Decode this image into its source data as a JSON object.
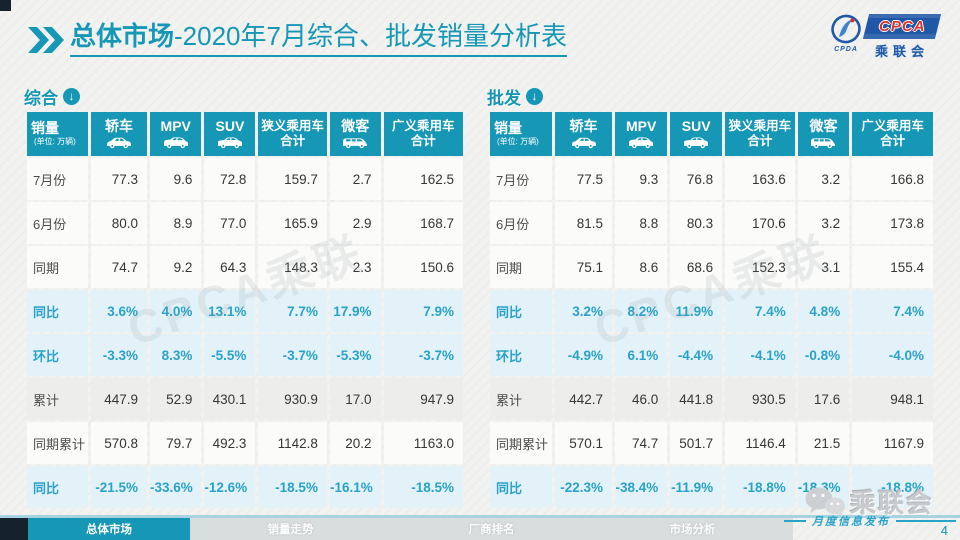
{
  "header": {
    "title_bold": "总体市场",
    "title_rest": "-2020年7月综合、批发销量分析表"
  },
  "logo": {
    "abbr": "CPCA",
    "cn": "乘联会",
    "sub": "CPDA"
  },
  "icons": {
    "down_arrow": "↓"
  },
  "watermark": {
    "text": "CPCA乘联"
  },
  "colors": {
    "accent_teal": "#1697b5",
    "value_teal": "#29a3c9",
    "logo_blue": "#2058a8",
    "logo_red": "#d9342b"
  },
  "tables": [
    {
      "section_label": "综合",
      "columns": [
        {
          "label": "销量",
          "sub": "(单位: 万辆)"
        },
        {
          "label": "轿车",
          "icon": "sedan-car-icon"
        },
        {
          "label": "MPV",
          "icon": "mpv-car-icon"
        },
        {
          "label": "SUV",
          "icon": "suv-car-icon"
        },
        {
          "label": "狭义乘用车",
          "label2": "合计"
        },
        {
          "label": "微客",
          "icon": "microvan-car-icon"
        },
        {
          "label": "广义乘用车",
          "label2": "合计"
        }
      ],
      "rows": [
        {
          "label": "7月份",
          "style": "plain",
          "values": [
            "77.3",
            "9.6",
            "72.8",
            "159.7",
            "2.7",
            "162.5"
          ]
        },
        {
          "label": "6月份",
          "style": "plain",
          "values": [
            "80.0",
            "8.9",
            "77.0",
            "165.9",
            "2.9",
            "168.7"
          ]
        },
        {
          "label": "同期",
          "style": "plain",
          "values": [
            "74.7",
            "9.2",
            "64.3",
            "148.3",
            "2.3",
            "150.6"
          ]
        },
        {
          "label": "同比",
          "style": "highlight",
          "values": [
            "3.6%",
            "4.0%",
            "13.1%",
            "7.7%",
            "17.9%",
            "7.9%"
          ]
        },
        {
          "label": "环比",
          "style": "highlight",
          "values": [
            "-3.3%",
            "8.3%",
            "-5.5%",
            "-3.7%",
            "-5.3%",
            "-3.7%"
          ]
        },
        {
          "label": "累计",
          "style": "gray",
          "values": [
            "447.9",
            "52.9",
            "430.1",
            "930.9",
            "17.0",
            "947.9"
          ]
        },
        {
          "label": "同期累计",
          "style": "plain",
          "values": [
            "570.8",
            "79.7",
            "492.3",
            "1142.8",
            "20.2",
            "1163.0"
          ]
        },
        {
          "label": "同比",
          "style": "highlight",
          "values": [
            "-21.5%",
            "-33.6%",
            "-12.6%",
            "-18.5%",
            "-16.1%",
            "-18.5%"
          ]
        }
      ]
    },
    {
      "section_label": "批发",
      "columns": [
        {
          "label": "销量",
          "sub": "(单位: 万辆)"
        },
        {
          "label": "轿车",
          "icon": "sedan-car-icon"
        },
        {
          "label": "MPV",
          "icon": "mpv-car-icon"
        },
        {
          "label": "SUV",
          "icon": "suv-car-icon"
        },
        {
          "label": "狭义乘用车",
          "label2": "合计"
        },
        {
          "label": "微客",
          "icon": "microvan-car-icon"
        },
        {
          "label": "广义乘用车",
          "label2": "合计"
        }
      ],
      "rows": [
        {
          "label": "7月份",
          "style": "plain",
          "values": [
            "77.5",
            "9.3",
            "76.8",
            "163.6",
            "3.2",
            "166.8"
          ]
        },
        {
          "label": "6月份",
          "style": "plain",
          "values": [
            "81.5",
            "8.8",
            "80.3",
            "170.6",
            "3.2",
            "173.8"
          ]
        },
        {
          "label": "同期",
          "style": "plain",
          "values": [
            "75.1",
            "8.6",
            "68.6",
            "152.3",
            "3.1",
            "155.4"
          ]
        },
        {
          "label": "同比",
          "style": "highlight",
          "values": [
            "3.2%",
            "8.2%",
            "11.9%",
            "7.4%",
            "4.8%",
            "7.4%"
          ]
        },
        {
          "label": "环比",
          "style": "highlight",
          "values": [
            "-4.9%",
            "6.1%",
            "-4.4%",
            "-4.1%",
            "-0.8%",
            "-4.0%"
          ]
        },
        {
          "label": "累计",
          "style": "gray",
          "values": [
            "442.7",
            "46.0",
            "441.8",
            "930.5",
            "17.6",
            "948.1"
          ]
        },
        {
          "label": "同期累计",
          "style": "plain",
          "values": [
            "570.1",
            "74.7",
            "501.7",
            "1146.4",
            "21.5",
            "1167.9"
          ]
        },
        {
          "label": "同比",
          "style": "highlight",
          "values": [
            "-22.3%",
            "-38.4%",
            "-11.9%",
            "-18.8%",
            "-18.3%",
            "-18.8%"
          ]
        }
      ]
    }
  ],
  "nav_tabs": [
    {
      "label": "总体市场",
      "active": true
    },
    {
      "label": "销量走势",
      "active": false
    },
    {
      "label": "厂商排名",
      "active": false
    },
    {
      "label": "市场分析",
      "active": false
    }
  ],
  "footer": {
    "wechat_label": "乘联会",
    "release_label": "月度信息发布",
    "page_number": "4"
  }
}
